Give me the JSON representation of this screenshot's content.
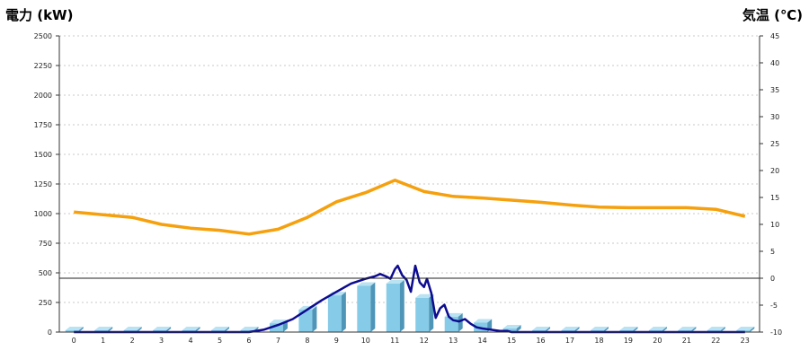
{
  "chart_data": {
    "type": "bar+line",
    "left_axis_title": "電力 (kW)",
    "right_axis_title": "気温 (℃)",
    "left_ylim": [
      0,
      2500
    ],
    "right_ylim": [
      -10,
      45
    ],
    "left_ticks": [
      "0",
      "250",
      "500",
      "750",
      "1000",
      "1250",
      "1500",
      "1750",
      "2000",
      "2250",
      "2500"
    ],
    "right_ticks": [
      "-10",
      "-5",
      "0",
      "5",
      "10",
      "15",
      "20",
      "25",
      "30",
      "35",
      "40",
      "45"
    ],
    "categories": [
      "0",
      "1",
      "2",
      "3",
      "4",
      "5",
      "6",
      "7",
      "8",
      "9",
      "10",
      "11",
      "12",
      "13",
      "14",
      "15",
      "16",
      "17",
      "18",
      "19",
      "20",
      "21",
      "22",
      "23"
    ],
    "grid": true,
    "series": [
      {
        "kind": "bar",
        "axis": "left",
        "values": [
          15,
          15,
          15,
          15,
          15,
          15,
          15,
          75,
          190,
          310,
          390,
          410,
          290,
          130,
          80,
          30,
          15,
          15,
          15,
          15,
          15,
          15,
          15,
          15
        ]
      },
      {
        "kind": "line",
        "axis": "left",
        "x": [
          0,
          1,
          2,
          3,
          4,
          5,
          6,
          6.5,
          7,
          7.5,
          8,
          8.5,
          9,
          9.5,
          10,
          10.3,
          10.5,
          10.7,
          10.85,
          11,
          11.1,
          11.25,
          11.4,
          11.55,
          11.7,
          11.85,
          12,
          12.1,
          12.25,
          12.4,
          12.55,
          12.7,
          12.85,
          13,
          13.2,
          13.4,
          13.6,
          13.8,
          14,
          14.3,
          14.6,
          14.85,
          15,
          16,
          17,
          18,
          19,
          20,
          21,
          22,
          23
        ],
        "values": [
          0,
          0,
          0,
          0,
          0,
          0,
          0,
          20,
          60,
          110,
          190,
          270,
          340,
          410,
          450,
          470,
          490,
          470,
          450,
          530,
          560,
          480,
          440,
          340,
          560,
          420,
          380,
          450,
          330,
          120,
          200,
          230,
          130,
          100,
          90,
          110,
          70,
          40,
          30,
          20,
          10,
          10,
          0,
          0,
          0,
          0,
          0,
          0,
          0,
          0,
          0
        ]
      },
      {
        "kind": "line",
        "axis": "right",
        "values": [
          12.3,
          11.8,
          11.3,
          10,
          9.3,
          8.9,
          8.2,
          9.1,
          11.3,
          14.2,
          15.9,
          18.2,
          16.1,
          15.2,
          14.9,
          14.5,
          14.1,
          13.6,
          13.2,
          13.1,
          13.1,
          13.1,
          12.8,
          11.5
        ]
      }
    ],
    "colors": {
      "bar_face": "#86cbe7",
      "bar_side": "#4e95b8",
      "bar_top": "#b9e2f2",
      "power_line": "#0d0b8f",
      "temp_line": "#f5a00c",
      "left_title": "#1a5fa8",
      "right_title": "#ee7d1b",
      "grid": "#c8c8c8"
    }
  }
}
